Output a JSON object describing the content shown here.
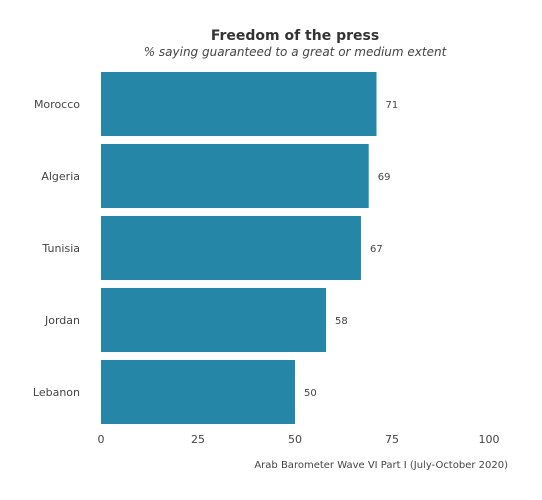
{
  "chart_data": {
    "type": "bar",
    "orientation": "horizontal",
    "title": "Freedom of the press",
    "subtitle": "% saying guaranteed to a great or medium extent",
    "caption": "Arab Barometer Wave VI Part I (July-October 2020)",
    "categories": [
      "Morocco",
      "Algeria",
      "Tunisia",
      "Jordan",
      "Lebanon"
    ],
    "values": [
      71,
      69,
      67,
      58,
      50
    ],
    "data_labels": [
      "71",
      "69",
      "67",
      "58",
      "50"
    ],
    "xlim": [
      0,
      100
    ],
    "x_ticks": [
      0,
      25,
      50,
      75,
      100
    ],
    "x_tick_labels": [
      "0",
      "25",
      "50",
      "75",
      "100"
    ],
    "xlabel": "",
    "ylabel": "",
    "grid": false,
    "legend": "none",
    "bar_color": "#2586a8",
    "text_color": "#444444"
  }
}
